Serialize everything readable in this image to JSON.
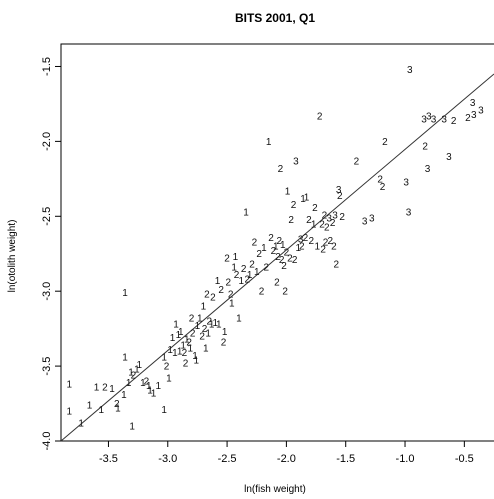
{
  "chart_data": {
    "type": "scatter",
    "title": "BITS 2001, Q1",
    "xlabel": "ln(fish weight)",
    "ylabel": "ln(otolith weight)",
    "xlim": [
      -3.9,
      -0.25
    ],
    "ylim": [
      -4.0,
      -1.35
    ],
    "xticks": [
      {
        "value": -3.5,
        "label": "-3.5"
      },
      {
        "value": -3.0,
        "label": "-3.0"
      },
      {
        "value": -2.5,
        "label": "-2.5"
      },
      {
        "value": -2.0,
        "label": "-2.0"
      },
      {
        "value": -1.5,
        "label": "-1.5"
      },
      {
        "value": -1.0,
        "label": "-1.0"
      },
      {
        "value": -0.5,
        "label": "-0.5"
      }
    ],
    "yticks": [
      {
        "value": -1.5,
        "label": "-1.5"
      },
      {
        "value": -2.0,
        "label": "-2.0"
      },
      {
        "value": -2.5,
        "label": "-2.5"
      },
      {
        "value": -3.0,
        "label": "-3.0"
      },
      {
        "value": -3.5,
        "label": "-3.5"
      },
      {
        "value": -4.0,
        "label": "-4.0"
      }
    ],
    "regression_line": {
      "x": [
        -3.9,
        -0.25
      ],
      "y": [
        -4.0,
        -1.55
      ]
    },
    "points": [
      {
        "x": -3.83,
        "y": -3.62,
        "label": "1"
      },
      {
        "x": -3.83,
        "y": -3.8,
        "label": "1"
      },
      {
        "x": -3.73,
        "y": -3.88,
        "label": "1"
      },
      {
        "x": -3.66,
        "y": -3.76,
        "label": "1"
      },
      {
        "x": -3.6,
        "y": -3.64,
        "label": "1"
      },
      {
        "x": -3.56,
        "y": -3.79,
        "label": "1"
      },
      {
        "x": -3.53,
        "y": -3.64,
        "label": "2"
      },
      {
        "x": -3.47,
        "y": -3.65,
        "label": "1"
      },
      {
        "x": -3.43,
        "y": -3.75,
        "label": "2"
      },
      {
        "x": -3.42,
        "y": -3.78,
        "label": "1"
      },
      {
        "x": -3.37,
        "y": -3.69,
        "label": "1"
      },
      {
        "x": -3.36,
        "y": -3.01,
        "label": "1"
      },
      {
        "x": -3.36,
        "y": -3.44,
        "label": "1"
      },
      {
        "x": -3.33,
        "y": -3.61,
        "label": "1"
      },
      {
        "x": -3.31,
        "y": -3.54,
        "label": "1"
      },
      {
        "x": -3.3,
        "y": -3.9,
        "label": "1"
      },
      {
        "x": -3.29,
        "y": -3.56,
        "label": "2"
      },
      {
        "x": -3.26,
        "y": -3.52,
        "label": "1"
      },
      {
        "x": -3.24,
        "y": -3.49,
        "label": "1"
      },
      {
        "x": -3.21,
        "y": -3.61,
        "label": "1"
      },
      {
        "x": -3.18,
        "y": -3.6,
        "label": "2"
      },
      {
        "x": -3.16,
        "y": -3.63,
        "label": "1"
      },
      {
        "x": -3.15,
        "y": -3.66,
        "label": "1"
      },
      {
        "x": -3.12,
        "y": -3.68,
        "label": "1"
      },
      {
        "x": -3.08,
        "y": -3.63,
        "label": "1"
      },
      {
        "x": -3.03,
        "y": -3.44,
        "label": "1"
      },
      {
        "x": -3.03,
        "y": -3.79,
        "label": "1"
      },
      {
        "x": -3.01,
        "y": -3.5,
        "label": "2"
      },
      {
        "x": -2.99,
        "y": -3.58,
        "label": "1"
      },
      {
        "x": -2.98,
        "y": -3.39,
        "label": "1"
      },
      {
        "x": -2.96,
        "y": -3.31,
        "label": "1"
      },
      {
        "x": -2.94,
        "y": -3.41,
        "label": "1"
      },
      {
        "x": -2.93,
        "y": -3.22,
        "label": "1"
      },
      {
        "x": -2.91,
        "y": -3.29,
        "label": "1"
      },
      {
        "x": -2.9,
        "y": -3.4,
        "label": "1"
      },
      {
        "x": -2.89,
        "y": -3.27,
        "label": "1"
      },
      {
        "x": -2.87,
        "y": -3.36,
        "label": "1"
      },
      {
        "x": -2.86,
        "y": -3.41,
        "label": "2"
      },
      {
        "x": -2.85,
        "y": -3.48,
        "label": "2"
      },
      {
        "x": -2.84,
        "y": -3.32,
        "label": "1"
      },
      {
        "x": -2.82,
        "y": -3.34,
        "label": "2"
      },
      {
        "x": -2.81,
        "y": -3.38,
        "label": "1"
      },
      {
        "x": -2.8,
        "y": -3.18,
        "label": "2"
      },
      {
        "x": -2.79,
        "y": -3.28,
        "label": "2"
      },
      {
        "x": -2.77,
        "y": -3.43,
        "label": "1"
      },
      {
        "x": -2.76,
        "y": -3.46,
        "label": "1"
      },
      {
        "x": -2.75,
        "y": -3.23,
        "label": "1"
      },
      {
        "x": -2.73,
        "y": -3.18,
        "label": "1"
      },
      {
        "x": -2.71,
        "y": -3.3,
        "label": "2"
      },
      {
        "x": -2.7,
        "y": -3.1,
        "label": "1"
      },
      {
        "x": -2.69,
        "y": -3.25,
        "label": "2"
      },
      {
        "x": -2.68,
        "y": -3.38,
        "label": "1"
      },
      {
        "x": -2.67,
        "y": -3.02,
        "label": "2"
      },
      {
        "x": -2.66,
        "y": -3.28,
        "label": "1"
      },
      {
        "x": -2.65,
        "y": -3.2,
        "label": "2"
      },
      {
        "x": -2.63,
        "y": -3.22,
        "label": "1"
      },
      {
        "x": -2.62,
        "y": -3.04,
        "label": "2"
      },
      {
        "x": -2.6,
        "y": -3.21,
        "label": "1"
      },
      {
        "x": -2.58,
        "y": -2.93,
        "label": "1"
      },
      {
        "x": -2.57,
        "y": -3.22,
        "label": "1"
      },
      {
        "x": -2.55,
        "y": -2.99,
        "label": "2"
      },
      {
        "x": -2.53,
        "y": -3.34,
        "label": "2"
      },
      {
        "x": -2.52,
        "y": -3.27,
        "label": "1"
      },
      {
        "x": -2.5,
        "y": -2.78,
        "label": "2"
      },
      {
        "x": -2.49,
        "y": -2.94,
        "label": "2"
      },
      {
        "x": -2.47,
        "y": -3.02,
        "label": "2"
      },
      {
        "x": -2.46,
        "y": -3.08,
        "label": "1"
      },
      {
        "x": -2.44,
        "y": -2.84,
        "label": "1"
      },
      {
        "x": -2.43,
        "y": -2.77,
        "label": "1"
      },
      {
        "x": -2.42,
        "y": -2.89,
        "label": "2"
      },
      {
        "x": -2.4,
        "y": -3.18,
        "label": "1"
      },
      {
        "x": -2.38,
        "y": -2.93,
        "label": "1"
      },
      {
        "x": -2.36,
        "y": -2.85,
        "label": "2"
      },
      {
        "x": -2.34,
        "y": -2.47,
        "label": "1"
      },
      {
        "x": -2.33,
        "y": -2.92,
        "label": "2"
      },
      {
        "x": -2.31,
        "y": -2.89,
        "label": "1"
      },
      {
        "x": -2.29,
        "y": -2.82,
        "label": "2"
      },
      {
        "x": -2.27,
        "y": -2.67,
        "label": "2"
      },
      {
        "x": -2.25,
        "y": -2.87,
        "label": "1"
      },
      {
        "x": -2.23,
        "y": -2.75,
        "label": "2"
      },
      {
        "x": -2.21,
        "y": -3.0,
        "label": "2"
      },
      {
        "x": -2.19,
        "y": -2.71,
        "label": "1"
      },
      {
        "x": -2.17,
        "y": -2.84,
        "label": "2"
      },
      {
        "x": -2.15,
        "y": -2.0,
        "label": "1"
      },
      {
        "x": -2.13,
        "y": -2.64,
        "label": "2"
      },
      {
        "x": -2.11,
        "y": -2.73,
        "label": "2"
      },
      {
        "x": -2.09,
        "y": -2.7,
        "label": "1"
      },
      {
        "x": -2.08,
        "y": -2.94,
        "label": "2"
      },
      {
        "x": -2.07,
        "y": -2.77,
        "label": "2"
      },
      {
        "x": -2.06,
        "y": -2.66,
        "label": "2"
      },
      {
        "x": -2.05,
        "y": -2.18,
        "label": "2"
      },
      {
        "x": -2.04,
        "y": -2.79,
        "label": "2"
      },
      {
        "x": -2.03,
        "y": -2.69,
        "label": "1"
      },
      {
        "x": -2.02,
        "y": -2.83,
        "label": "2"
      },
      {
        "x": -2.01,
        "y": -3.0,
        "label": "2"
      },
      {
        "x": -2.0,
        "y": -2.74,
        "label": "2"
      },
      {
        "x": -1.99,
        "y": -2.33,
        "label": "1"
      },
      {
        "x": -1.97,
        "y": -2.78,
        "label": "2"
      },
      {
        "x": -1.96,
        "y": -2.52,
        "label": "2"
      },
      {
        "x": -1.94,
        "y": -2.42,
        "label": "2"
      },
      {
        "x": -1.93,
        "y": -2.79,
        "label": "2"
      },
      {
        "x": -1.92,
        "y": -2.13,
        "label": "3"
      },
      {
        "x": -1.9,
        "y": -2.71,
        "label": "1"
      },
      {
        "x": -1.88,
        "y": -2.65,
        "label": "3"
      },
      {
        "x": -1.87,
        "y": -2.7,
        "label": "2"
      },
      {
        "x": -1.86,
        "y": -2.38,
        "label": "1"
      },
      {
        "x": -1.84,
        "y": -2.64,
        "label": "2"
      },
      {
        "x": -1.83,
        "y": -2.37,
        "label": "1"
      },
      {
        "x": -1.81,
        "y": -2.52,
        "label": "2"
      },
      {
        "x": -1.79,
        "y": -2.66,
        "label": "2"
      },
      {
        "x": -1.77,
        "y": -2.55,
        "label": "1"
      },
      {
        "x": -1.76,
        "y": -2.44,
        "label": "2"
      },
      {
        "x": -1.74,
        "y": -2.7,
        "label": "1"
      },
      {
        "x": -1.72,
        "y": -1.83,
        "label": "2"
      },
      {
        "x": -1.7,
        "y": -2.55,
        "label": "2"
      },
      {
        "x": -1.69,
        "y": -2.72,
        "label": "2"
      },
      {
        "x": -1.68,
        "y": -2.49,
        "label": "2"
      },
      {
        "x": -1.67,
        "y": -2.67,
        "label": "2"
      },
      {
        "x": -1.66,
        "y": -2.57,
        "label": "2"
      },
      {
        "x": -1.64,
        "y": -2.51,
        "label": "3"
      },
      {
        "x": -1.63,
        "y": -2.66,
        "label": "2"
      },
      {
        "x": -1.61,
        "y": -2.54,
        "label": "2"
      },
      {
        "x": -1.6,
        "y": -2.7,
        "label": "2"
      },
      {
        "x": -1.59,
        "y": -2.49,
        "label": "3"
      },
      {
        "x": -1.58,
        "y": -2.82,
        "label": "2"
      },
      {
        "x": -1.56,
        "y": -2.32,
        "label": "3"
      },
      {
        "x": -1.55,
        "y": -2.36,
        "label": "2"
      },
      {
        "x": -1.53,
        "y": -2.5,
        "label": "2"
      },
      {
        "x": -1.41,
        "y": -2.13,
        "label": "2"
      },
      {
        "x": -1.34,
        "y": -2.53,
        "label": "3"
      },
      {
        "x": -1.28,
        "y": -2.51,
        "label": "3"
      },
      {
        "x": -1.21,
        "y": -2.25,
        "label": "2"
      },
      {
        "x": -1.19,
        "y": -2.3,
        "label": "2"
      },
      {
        "x": -1.17,
        "y": -2.0,
        "label": "2"
      },
      {
        "x": -0.99,
        "y": -2.27,
        "label": "3"
      },
      {
        "x": -0.97,
        "y": -2.47,
        "label": "3"
      },
      {
        "x": -0.96,
        "y": -1.52,
        "label": "3"
      },
      {
        "x": -0.84,
        "y": -1.85,
        "label": "3"
      },
      {
        "x": -0.83,
        "y": -2.03,
        "label": "2"
      },
      {
        "x": -0.81,
        "y": -2.18,
        "label": "3"
      },
      {
        "x": -0.8,
        "y": -1.83,
        "label": "3"
      },
      {
        "x": -0.76,
        "y": -1.85,
        "label": "3"
      },
      {
        "x": -0.67,
        "y": -1.85,
        "label": "3"
      },
      {
        "x": -0.63,
        "y": -2.1,
        "label": "3"
      },
      {
        "x": -0.59,
        "y": -1.86,
        "label": "2"
      },
      {
        "x": -0.47,
        "y": -1.84,
        "label": "2"
      },
      {
        "x": -0.43,
        "y": -1.74,
        "label": "3"
      },
      {
        "x": -0.42,
        "y": -1.82,
        "label": "3"
      },
      {
        "x": -0.36,
        "y": -1.79,
        "label": "3"
      }
    ]
  }
}
